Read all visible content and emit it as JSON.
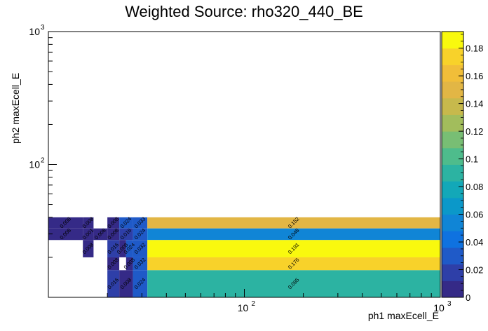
{
  "chart_data": {
    "type": "heatmap",
    "title": "Weighted Source: rho320_440_BE",
    "xlabel": "ph1 maxEcell_E",
    "ylabel": "ph2 maxEcell_E",
    "x_scale": "log",
    "y_scale": "log",
    "x_ticks": [
      {
        "value": 100,
        "label": "10",
        "exp": "2"
      },
      {
        "value": 1000,
        "label": "10",
        "exp": "3"
      }
    ],
    "y_ticks": [
      {
        "value": 100,
        "label": "10",
        "exp": "2"
      },
      {
        "value": 1000,
        "label": "10",
        "exp": "3"
      }
    ],
    "x_edges": [
      10,
      15,
      17,
      20,
      23,
      27,
      32,
      1000
    ],
    "y_edges": [
      10,
      16,
      20,
      27,
      33,
      40,
      1000
    ],
    "cells": [
      {
        "xi": 1,
        "yi": 5,
        "value": 0.008,
        "label": "0.008"
      },
      {
        "xi": 2,
        "yi": 5,
        "value": 0.008,
        "label": "0.008"
      },
      {
        "xi": 4,
        "yi": 5,
        "value": 0.008,
        "label": "0.008"
      },
      {
        "xi": 5,
        "yi": 5,
        "value": 0.024,
        "label": "0.024"
      },
      {
        "xi": 6,
        "yi": 5,
        "value": 0.033,
        "label": "0.033"
      },
      {
        "xi": 7,
        "yi": 5,
        "value": 0.152,
        "label": "0.152"
      },
      {
        "xi": 1,
        "yi": 4,
        "value": 0.008,
        "label": "0.008"
      },
      {
        "xi": 2,
        "yi": 4,
        "value": 0.001,
        "label": "0.001"
      },
      {
        "xi": 3,
        "yi": 4,
        "value": 0.008,
        "label": "0.008"
      },
      {
        "xi": 4,
        "yi": 4,
        "value": 0.008,
        "label": "0.008"
      },
      {
        "xi": 5,
        "yi": 4,
        "value": 0.016,
        "label": "0.016"
      },
      {
        "xi": 6,
        "yi": 4,
        "value": 0.024,
        "label": "0.024"
      },
      {
        "xi": 7,
        "yi": 4,
        "value": 0.048,
        "label": "0.048"
      },
      {
        "xi": 2,
        "yi": 3,
        "value": 0.008,
        "label": "0.008"
      },
      {
        "xi": 4,
        "yi": 3,
        "value": 0.016,
        "label": "0.016"
      },
      {
        "xi": 5,
        "yi": 3,
        "value": 0.008,
        "label": "0.008"
      },
      {
        "xi": 5,
        "yi": 3,
        "value": 0.024,
        "label": "0.024",
        "col": 5.5
      },
      {
        "xi": 6,
        "yi": 3,
        "value": 0.032,
        "label": "0.032"
      },
      {
        "xi": 7,
        "yi": 3,
        "value": 0.191,
        "label": "0.191"
      },
      {
        "xi": 4,
        "yi": 2,
        "value": 0.008,
        "label": "0.008"
      },
      {
        "xi": 5,
        "yi": 2,
        "value": 0.008,
        "label": "0.008",
        "col": 5.5
      },
      {
        "xi": 6,
        "yi": 2,
        "value": 0.032,
        "label": "0.032"
      },
      {
        "xi": 7,
        "yi": 2,
        "value": 0.176,
        "label": "0.176"
      },
      {
        "xi": 4,
        "yi": 1,
        "value": 0.016,
        "label": "0.016"
      },
      {
        "xi": 5,
        "yi": 1,
        "value": 0.008,
        "label": "0.008"
      },
      {
        "xi": 6,
        "yi": 1,
        "value": 0.024,
        "label": "0.024"
      },
      {
        "xi": 7,
        "yi": 1,
        "value": 0.095,
        "label": "0.095"
      }
    ],
    "zlim": [
      0,
      0.192
    ],
    "colorbar_ticks": [
      {
        "value": 0,
        "label": "0"
      },
      {
        "value": 0.02,
        "label": "0.02"
      },
      {
        "value": 0.04,
        "label": "0.04"
      },
      {
        "value": 0.06,
        "label": "0.06"
      },
      {
        "value": 0.08,
        "label": "0.08"
      },
      {
        "value": 0.1,
        "label": "0.1"
      },
      {
        "value": 0.12,
        "label": "0.12"
      },
      {
        "value": 0.14,
        "label": "0.14"
      },
      {
        "value": 0.16,
        "label": "0.16"
      },
      {
        "value": 0.18,
        "label": "0.18"
      }
    ],
    "palette": [
      "#352a87",
      "#2e3fa8",
      "#1f5ac8",
      "#0f72e0",
      "#1085d6",
      "#0b98c9",
      "#13a8b8",
      "#2cb3a2",
      "#4ebc8c",
      "#78be74",
      "#a2bd5c",
      "#c7b94c",
      "#e2b645",
      "#f1be39",
      "#f8d22a",
      "#f9f90e"
    ]
  }
}
